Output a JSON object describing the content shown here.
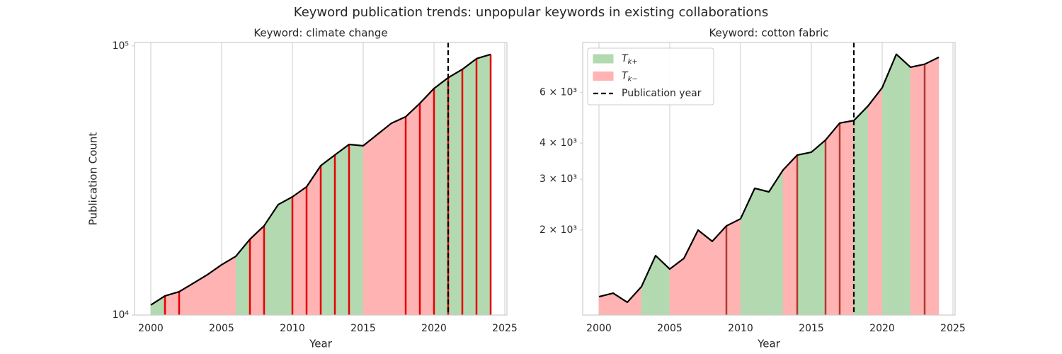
{
  "title": "Keyword publication trends: unpopular keywords in existing collaborations",
  "chart_data": [
    {
      "type": "area",
      "title": "Keyword: climate change",
      "xlabel": "Year",
      "ylabel": "Publication Count",
      "x": [
        2000,
        2001,
        2002,
        2003,
        2004,
        2005,
        2006,
        2007,
        2008,
        2009,
        2010,
        2011,
        2012,
        2013,
        2014,
        2015,
        2016,
        2017,
        2018,
        2019,
        2020,
        2021,
        2022,
        2023,
        2024
      ],
      "values": [
        10900,
        11780,
        12210,
        13130,
        14130,
        15380,
        16530,
        19130,
        21460,
        25740,
        27500,
        29950,
        35900,
        39350,
        43060,
        42560,
        46900,
        51650,
        54550,
        61200,
        69500,
        76200,
        81850,
        89700,
        93000
      ],
      "segments": [
        "+",
        "-",
        "-",
        "-",
        "-",
        "-",
        "+",
        "-",
        "+",
        "+",
        "-",
        "-",
        "+",
        "+",
        "+",
        "-",
        "-",
        "-",
        "-",
        "-",
        "+",
        "+",
        "+",
        "+"
      ],
      "fill_colors": {
        "+": "#b3d9b0",
        "-": "#ffb3b3"
      },
      "line_color": "#000000",
      "highlight_years": [
        2001,
        2002,
        2007,
        2008,
        2010,
        2011,
        2012,
        2013,
        2014,
        2018,
        2019,
        2020,
        2021,
        2022,
        2023,
        2024
      ],
      "highlight_color": "#e60000",
      "publication_year": 2021,
      "publication_color": "#000000",
      "xlim": [
        1998.85,
        2025.15
      ],
      "xticks": [
        2000,
        2005,
        2010,
        2015,
        2020,
        2025
      ],
      "ylim": [
        10000,
        103000
      ],
      "log_y": true,
      "yticks": [
        {
          "value": 10000,
          "label": "10⁴"
        },
        {
          "value": 100000,
          "label": "10⁵"
        }
      ],
      "grid": "x"
    },
    {
      "type": "area",
      "title": "Keyword: cotton fabric",
      "xlabel": "Year",
      "x": [
        2000,
        2001,
        2002,
        2003,
        2004,
        2005,
        2006,
        2007,
        2008,
        2009,
        2010,
        2011,
        2012,
        2013,
        2014,
        2015,
        2016,
        2017,
        2018,
        2019,
        2020,
        2021,
        2022,
        2023,
        2024
      ],
      "values": [
        1176,
        1210,
        1125,
        1274,
        1632,
        1466,
        1597,
        2000,
        1828,
        2068,
        2188,
        2790,
        2712,
        3228,
        3636,
        3721,
        4098,
        4694,
        4788,
        5377,
        6220,
        8122,
        7322,
        7502,
        7930
      ],
      "segments": [
        "-",
        "-",
        "-",
        "+",
        "+",
        "-",
        "-",
        "-",
        "-",
        "-",
        "+",
        "+",
        "+",
        "-",
        "+",
        "+",
        "-",
        "-",
        "+",
        "-",
        "+",
        "+",
        "-",
        "-"
      ],
      "fill_colors": {
        "+": "#b3d9b0",
        "-": "#ffb3b3"
      },
      "line_color": "#000000",
      "highlight_years": [
        2009,
        2014,
        2016,
        2017,
        2023
      ],
      "highlight_color": "#b03a2e",
      "publication_year": 2018,
      "publication_color": "#000000",
      "xlim": [
        1998.85,
        2025.15
      ],
      "xticks": [
        2000,
        2005,
        2010,
        2015,
        2020,
        2025
      ],
      "ylim": [
        1016,
        8920
      ],
      "log_y": true,
      "yticks": [
        {
          "value": 2000,
          "label": "2 × 10³"
        },
        {
          "value": 3000,
          "label": "3 × 10³"
        },
        {
          "value": 4000,
          "label": "4 × 10³"
        },
        {
          "value": 6000,
          "label": "6 × 10³"
        }
      ],
      "grid": "x",
      "legend": {
        "loc": "upper left",
        "entries": [
          {
            "text": "T",
            "subscript": "k+",
            "kind": "+"
          },
          {
            "text": "T",
            "subscript": "k−",
            "kind": "-"
          },
          {
            "text": "Publication year",
            "kind": "line"
          }
        ]
      }
    }
  ]
}
